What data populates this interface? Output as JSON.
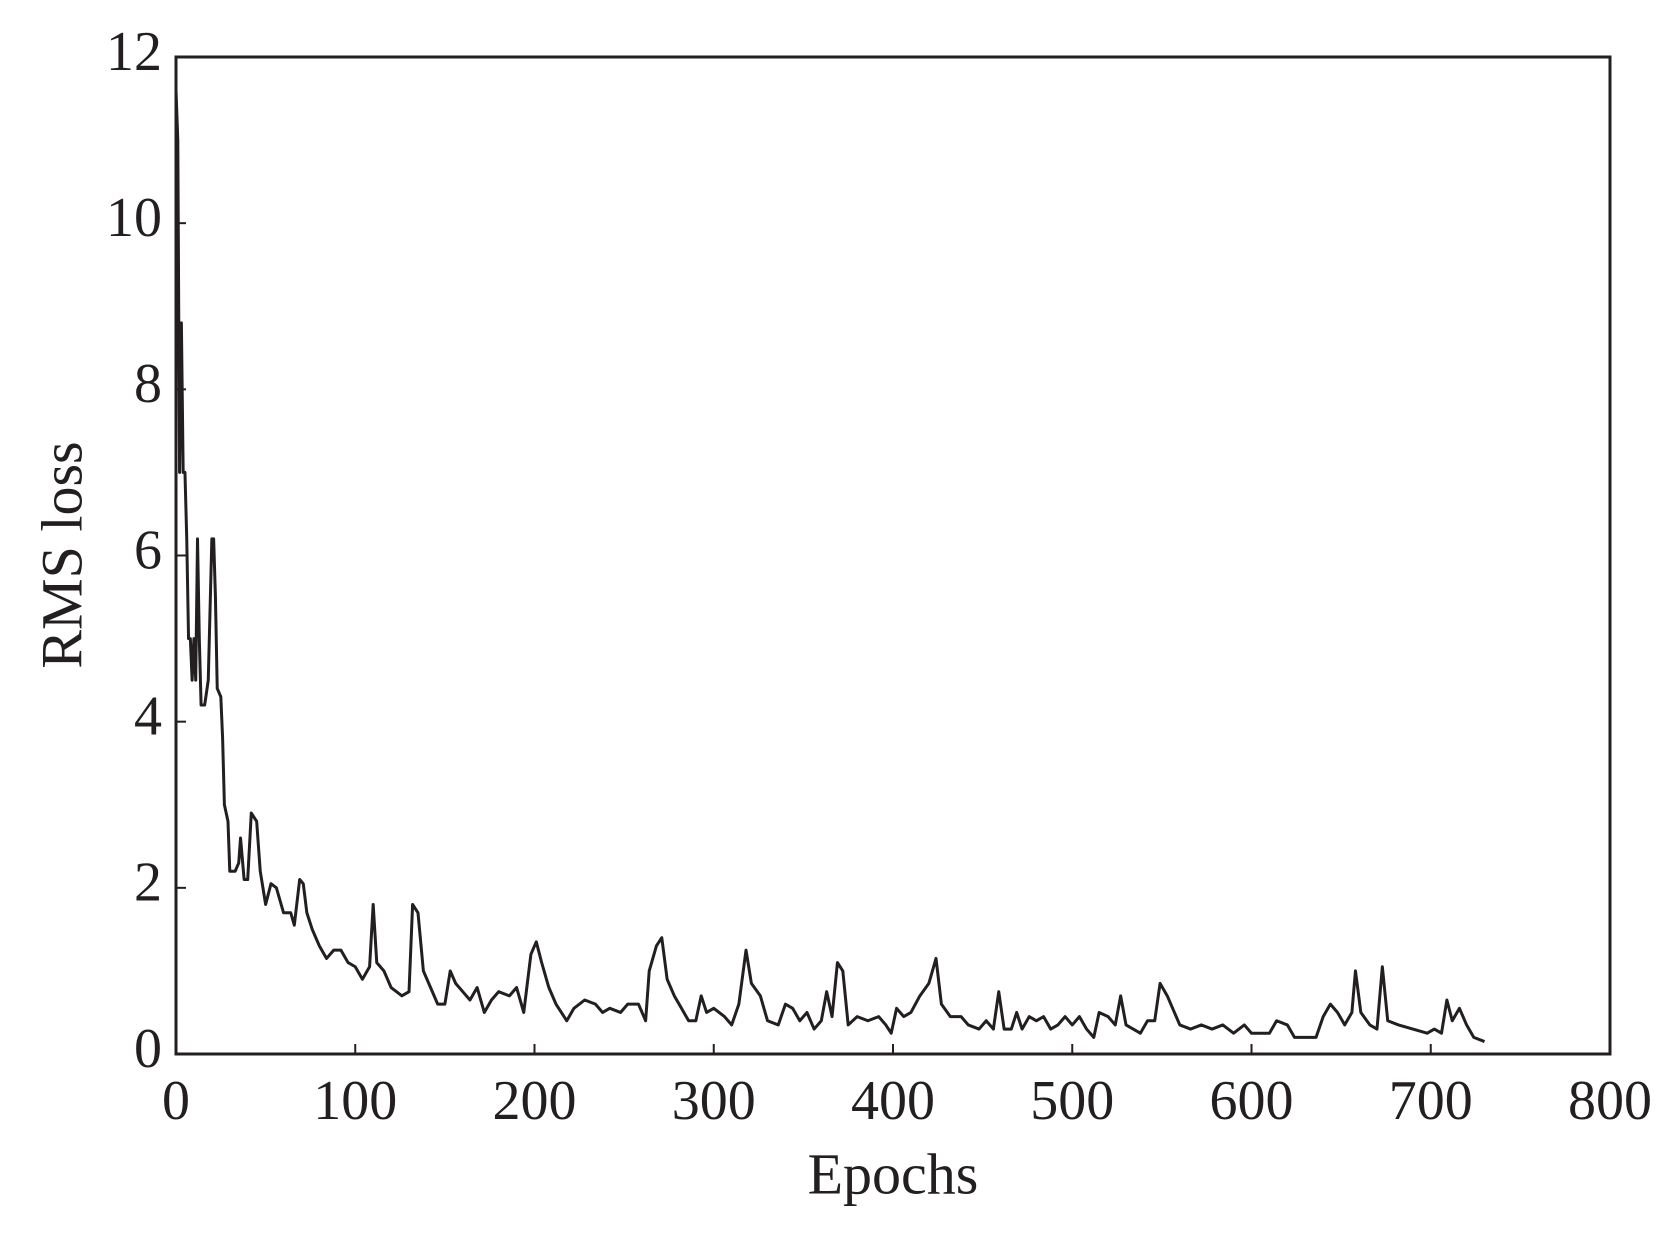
{
  "chart_data": {
    "type": "line",
    "xlabel": "Epochs",
    "ylabel": "RMS loss",
    "color": "#231f20",
    "x": [
      0,
      1,
      2,
      3,
      4,
      5,
      6,
      7,
      8,
      9,
      10,
      11,
      12,
      13,
      14,
      16,
      18,
      20,
      21,
      22,
      23,
      25,
      26,
      27,
      29,
      30,
      33,
      35,
      36,
      38,
      40,
      42,
      45,
      47,
      50,
      53,
      56,
      60,
      64,
      66,
      69,
      71,
      73,
      76,
      80,
      84,
      88,
      92,
      96,
      100,
      104,
      108,
      110,
      112,
      116,
      120,
      126,
      130,
      132,
      135,
      138,
      142,
      146,
      150,
      153,
      156,
      160,
      164,
      168,
      172,
      176,
      180,
      186,
      190,
      194,
      198,
      201,
      204,
      208,
      212,
      218,
      222,
      228,
      234,
      238,
      242,
      248,
      252,
      258,
      262,
      264,
      268,
      271,
      274,
      278,
      282,
      286,
      290,
      293,
      296,
      300,
      306,
      310,
      314,
      318,
      321,
      326,
      330,
      336,
      340,
      344,
      348,
      352,
      356,
      360,
      363,
      366,
      369,
      372,
      375,
      380,
      386,
      392,
      396,
      399,
      402,
      406,
      410,
      415,
      420,
      424,
      427,
      432,
      438,
      442,
      448,
      452,
      456,
      459,
      462,
      466,
      469,
      472,
      476,
      480,
      484,
      488,
      492,
      496,
      500,
      504,
      508,
      512,
      515,
      520,
      524,
      527,
      530,
      534,
      538,
      542,
      546,
      549,
      553,
      556,
      560,
      566,
      572,
      578,
      584,
      590,
      596,
      600,
      606,
      610,
      614,
      620,
      624,
      630,
      636,
      640,
      644,
      648,
      652,
      656,
      658,
      661,
      666,
      670,
      673,
      676,
      682,
      690,
      698,
      702,
      706,
      709,
      712,
      716,
      720,
      724,
      730
    ],
    "values": [
      11.6,
      11.0,
      7.0,
      8.8,
      7.0,
      7.0,
      6.2,
      5.0,
      5.0,
      4.5,
      5.0,
      4.5,
      6.2,
      5.0,
      4.2,
      4.2,
      4.5,
      6.2,
      6.2,
      5.5,
      4.4,
      4.3,
      3.8,
      3.0,
      2.8,
      2.2,
      2.2,
      2.3,
      2.6,
      2.1,
      2.1,
      2.9,
      2.8,
      2.2,
      1.8,
      2.05,
      2.0,
      1.7,
      1.7,
      1.55,
      2.1,
      2.05,
      1.7,
      1.5,
      1.3,
      1.15,
      1.25,
      1.25,
      1.1,
      1.05,
      0.9,
      1.05,
      1.8,
      1.1,
      1.0,
      0.8,
      0.7,
      0.75,
      1.8,
      1.7,
      1.0,
      0.8,
      0.6,
      0.6,
      1.0,
      0.85,
      0.75,
      0.65,
      0.8,
      0.5,
      0.65,
      0.75,
      0.7,
      0.8,
      0.5,
      1.2,
      1.35,
      1.1,
      0.8,
      0.6,
      0.4,
      0.55,
      0.65,
      0.6,
      0.5,
      0.55,
      0.5,
      0.6,
      0.6,
      0.4,
      1.0,
      1.3,
      1.4,
      0.9,
      0.7,
      0.55,
      0.4,
      0.4,
      0.7,
      0.5,
      0.55,
      0.45,
      0.35,
      0.6,
      1.25,
      0.85,
      0.7,
      0.4,
      0.35,
      0.6,
      0.55,
      0.4,
      0.5,
      0.3,
      0.4,
      0.75,
      0.45,
      1.1,
      1.0,
      0.35,
      0.45,
      0.4,
      0.45,
      0.35,
      0.25,
      0.55,
      0.45,
      0.5,
      0.7,
      0.85,
      1.15,
      0.6,
      0.45,
      0.45,
      0.35,
      0.3,
      0.4,
      0.3,
      0.75,
      0.3,
      0.3,
      0.5,
      0.3,
      0.45,
      0.4,
      0.45,
      0.3,
      0.35,
      0.45,
      0.35,
      0.45,
      0.3,
      0.2,
      0.5,
      0.45,
      0.35,
      0.7,
      0.35,
      0.3,
      0.25,
      0.4,
      0.4,
      0.85,
      0.7,
      0.55,
      0.35,
      0.3,
      0.35,
      0.3,
      0.35,
      0.25,
      0.35,
      0.25,
      0.25,
      0.25,
      0.4,
      0.35,
      0.2,
      0.2,
      0.2,
      0.45,
      0.6,
      0.5,
      0.35,
      0.5,
      1.0,
      0.5,
      0.35,
      0.3,
      1.05,
      0.4,
      0.35,
      0.3,
      0.25,
      0.3,
      0.25,
      0.65,
      0.4,
      0.55,
      0.35,
      0.2,
      0.15
    ],
    "xlim": [
      0,
      800
    ],
    "xticks": [
      0,
      100,
      200,
      300,
      400,
      500,
      600,
      700,
      800
    ],
    "ylim": [
      0,
      12
    ],
    "yticks": [
      0,
      2,
      4,
      6,
      8,
      10,
      12
    ]
  }
}
